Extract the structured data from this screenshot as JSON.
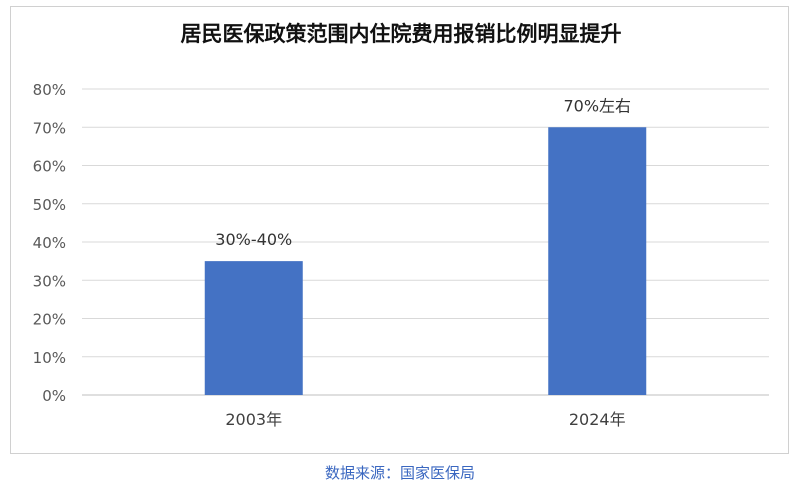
{
  "chart_data": {
    "type": "bar",
    "title": "居民医保政策范围内住院费用报销比例明显提升",
    "categories": [
      "2003年",
      "2024年"
    ],
    "values": [
      35,
      70
    ],
    "data_labels": [
      "30%-40%",
      "70%左右"
    ],
    "y_ticks": [
      "0%",
      "10%",
      "20%",
      "30%",
      "40%",
      "50%",
      "60%",
      "70%",
      "80%"
    ],
    "ylim": [
      0,
      80
    ],
    "y_unit": "%",
    "grid": true,
    "legend": "none",
    "bar_color": "#4472c4",
    "grid_color": "#d9d9d9"
  },
  "source": "数据来源：国家医保局"
}
